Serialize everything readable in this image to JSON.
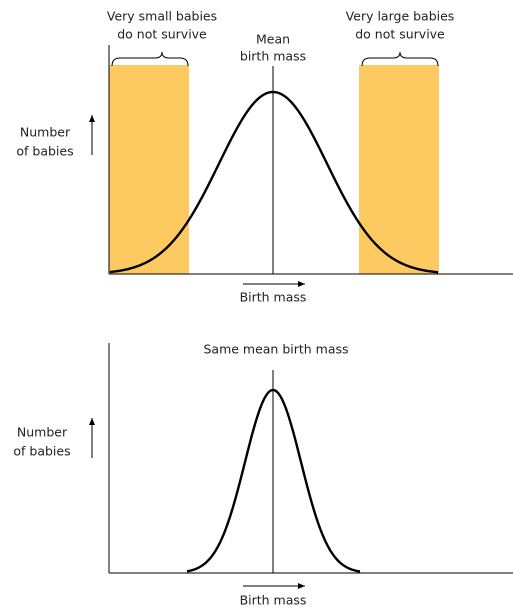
{
  "top": {
    "left_label": [
      "Very small babies",
      "do not survive"
    ],
    "mean_label": [
      "Mean",
      "birth mass"
    ],
    "right_label": [
      "Very large babies",
      "do not survive"
    ],
    "y_label": [
      "Number",
      "of babies"
    ],
    "x_label": "Birth mass"
  },
  "bottom": {
    "mean_label": "Same mean birth mass",
    "y_label": [
      "Number",
      "of babies"
    ],
    "x_label": "Birth mass"
  }
}
